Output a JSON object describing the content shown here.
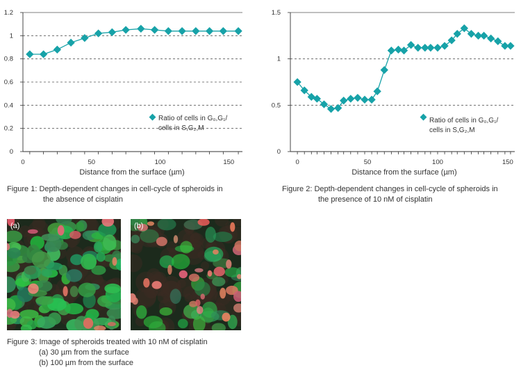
{
  "chart_data": [
    {
      "type": "line",
      "title": "Figure 1",
      "xlabel": "Distance from the surface (µm)",
      "ylabel": "",
      "xlim": [
        0,
        160
      ],
      "ylim": [
        0,
        1.2
      ],
      "xticks": [
        0,
        50,
        100,
        150
      ],
      "yticks": [
        0,
        0.2,
        0.4,
        0.6,
        0.8,
        1,
        1.2
      ],
      "ytick_labels": [
        "0",
        "0.2",
        "0.4",
        "0.6",
        "0.8",
        "1",
        "1.2"
      ],
      "grid": "horizontal dashed",
      "legend": {
        "placement": "right-middle",
        "line1": "Ratio of cells in G₀,G₁/",
        "line2": "cells in S,G₂,M"
      },
      "color": "#17a2a8",
      "series": [
        {
          "name": "Ratio of cells in G₀,G₁/cells in S,G₂,M",
          "x": [
            5,
            15,
            25,
            35,
            45,
            55,
            65,
            75,
            86,
            96,
            106,
            116,
            126,
            136,
            146,
            157
          ],
          "y": [
            0.84,
            0.84,
            0.88,
            0.94,
            0.98,
            1.02,
            1.03,
            1.05,
            1.06,
            1.05,
            1.04,
            1.04,
            1.04,
            1.04,
            1.04,
            1.04
          ]
        }
      ]
    },
    {
      "type": "line",
      "title": "Figure 2",
      "xlabel": "Distance from the surface (µm)",
      "ylabel": "",
      "xlim": [
        -5,
        155
      ],
      "ylim": [
        0,
        1.5
      ],
      "xticks": [
        0,
        50,
        100,
        150
      ],
      "yticks": [
        0,
        0.5,
        1,
        1.5
      ],
      "ytick_labels": [
        "0",
        "0.5",
        "1",
        "1.5"
      ],
      "grid": "horizontal dashed",
      "legend": {
        "placement": "right-middle",
        "line1": "Ratio of cells in G₀,G₁/",
        "line2": "cells in S,G₂,M"
      },
      "color": "#17a2a8",
      "series": [
        {
          "name": "Ratio of cells in G₀,G₁/cells in S,G₂,M",
          "x": [
            0,
            5,
            10,
            14,
            19,
            24,
            29,
            33,
            38,
            43,
            48,
            53,
            57,
            62,
            67,
            72,
            76,
            81,
            86,
            91,
            95,
            100,
            105,
            110,
            114,
            119,
            124,
            129,
            133,
            138,
            143,
            148,
            152
          ],
          "y": [
            0.75,
            0.66,
            0.59,
            0.57,
            0.51,
            0.46,
            0.47,
            0.55,
            0.57,
            0.58,
            0.56,
            0.56,
            0.65,
            0.88,
            1.09,
            1.1,
            1.09,
            1.15,
            1.12,
            1.12,
            1.12,
            1.12,
            1.14,
            1.2,
            1.27,
            1.33,
            1.27,
            1.25,
            1.25,
            1.22,
            1.19,
            1.14,
            1.14
          ]
        }
      ]
    }
  ],
  "captions": {
    "fig1_line1": "Figure 1: Depth-dependent changes in cell-cycle of spheroids in",
    "fig1_line2": "the absence of cisplatin",
    "fig2_line1": "Figure 2: Depth-dependent changes in cell-cycle of spheroids in",
    "fig2_line2": "the presence of 10 nM of cisplatin",
    "fig3_line1": "Figure 3: Image of spheroids treated with 10 nM of cisplatin",
    "fig3_line2": "(a) 30 µm from the surface",
    "fig3_line3": "(b) 100 µm from the surface"
  },
  "images": {
    "a_label": "(a)",
    "b_label": "(b)"
  },
  "colors": {
    "marker": "#17a2a8",
    "grid": "#444444",
    "green_cells": "#1f9a4a",
    "red_cells": "#e06a6a"
  }
}
